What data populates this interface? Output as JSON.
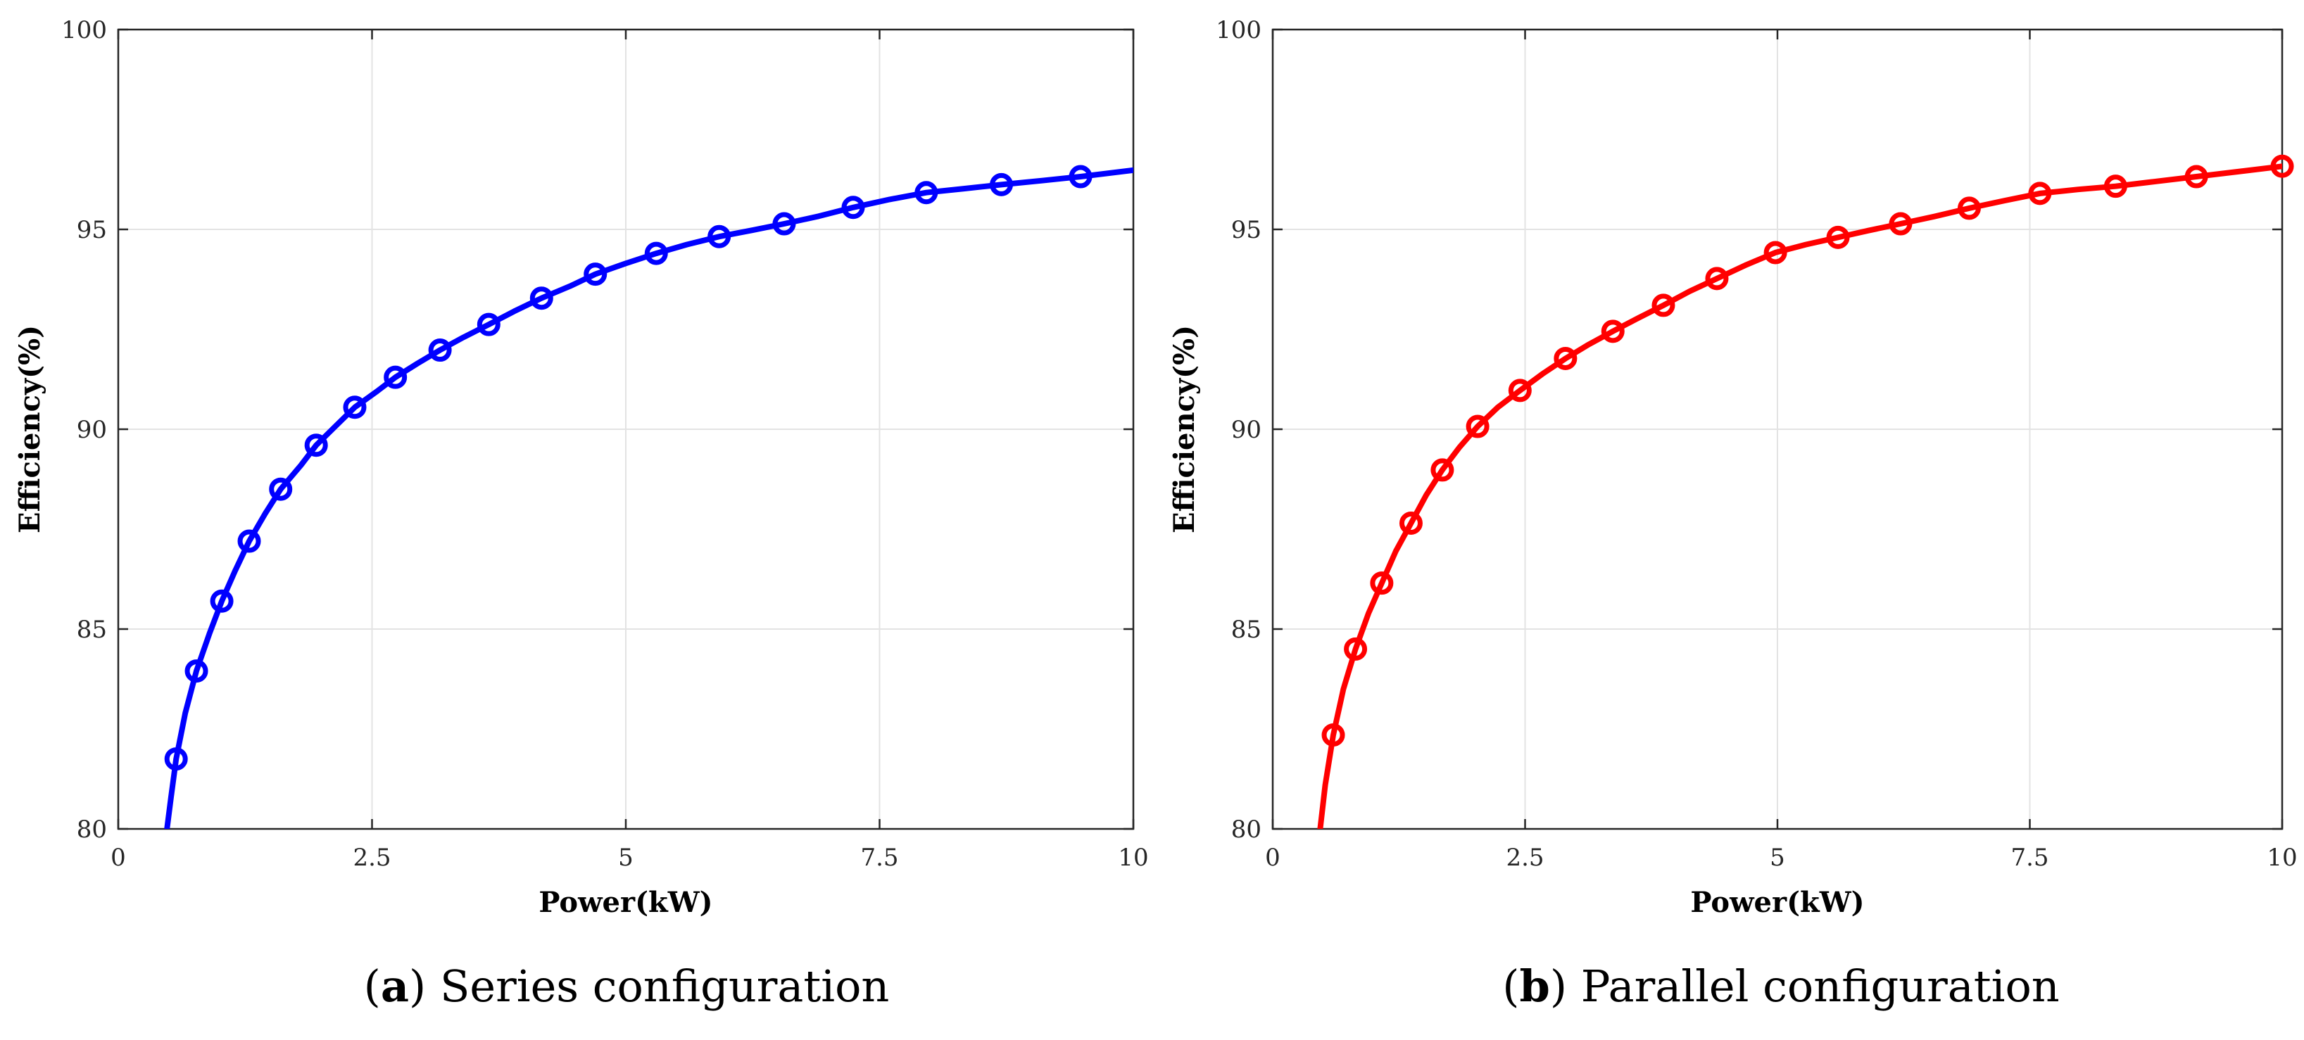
{
  "chart_data": [
    {
      "type": "line",
      "title": "",
      "xlabel": "Power(kW)",
      "ylabel": "Efficiency(%)",
      "xlim": [
        0,
        10
      ],
      "ylim": [
        80,
        100
      ],
      "xticks": [
        "0",
        "2.5",
        "5",
        "7.5",
        "10"
      ],
      "yticks": [
        "80",
        "85",
        "90",
        "95",
        "100"
      ],
      "grid": true,
      "series": [
        {
          "name": "Series configuration",
          "color": "#0000FF",
          "marker": "circle",
          "line_x": [
            0.48,
            0.52,
            0.57,
            0.66,
            0.77,
            0.9,
            1.02,
            1.15,
            1.29,
            1.45,
            1.6,
            1.8,
            1.95,
            2.15,
            2.33,
            2.55,
            2.73,
            2.95,
            3.17,
            3.4,
            3.65,
            3.9,
            4.17,
            4.45,
            4.7,
            5.0,
            5.3,
            5.6,
            5.92,
            6.25,
            6.56,
            6.9,
            7.24,
            7.6,
            7.96,
            8.33,
            8.7,
            9.1,
            9.48,
            10.0
          ],
          "line_y": [
            80.0,
            80.8,
            81.75,
            82.9,
            83.95,
            84.9,
            85.7,
            86.45,
            87.2,
            87.9,
            88.5,
            89.1,
            89.6,
            90.1,
            90.55,
            90.95,
            91.3,
            91.65,
            91.98,
            92.3,
            92.62,
            92.95,
            93.28,
            93.58,
            93.88,
            94.15,
            94.4,
            94.62,
            94.82,
            94.98,
            95.14,
            95.33,
            95.55,
            95.75,
            95.92,
            96.02,
            96.12,
            96.22,
            96.32,
            96.48
          ],
          "marker_x": [
            0.57,
            0.77,
            1.02,
            1.29,
            1.6,
            1.95,
            2.33,
            2.73,
            3.17,
            3.65,
            4.17,
            4.7,
            5.3,
            5.92,
            6.56,
            7.24,
            7.96,
            8.7,
            9.48
          ],
          "marker_y": [
            81.75,
            83.95,
            85.7,
            87.2,
            88.5,
            89.6,
            90.55,
            91.3,
            91.98,
            92.62,
            93.28,
            93.88,
            94.4,
            94.82,
            95.14,
            95.55,
            95.92,
            96.12,
            96.32
          ]
        }
      ]
    },
    {
      "type": "line",
      "title": "",
      "xlabel": "Power(kW)",
      "ylabel": "Efficiency(%)",
      "xlim": [
        0,
        10
      ],
      "ylim": [
        80,
        100
      ],
      "xticks": [
        "0",
        "2.5",
        "5",
        "7.5",
        "10"
      ],
      "yticks": [
        "80",
        "85",
        "90",
        "95",
        "100"
      ],
      "grid": true,
      "series": [
        {
          "name": "Parallel configuration",
          "color": "#FF0000",
          "marker": "circle",
          "line_x": [
            0.47,
            0.52,
            0.6,
            0.7,
            0.82,
            0.95,
            1.08,
            1.22,
            1.37,
            1.52,
            1.68,
            1.85,
            2.03,
            2.23,
            2.45,
            2.67,
            2.9,
            3.13,
            3.37,
            3.62,
            3.87,
            4.13,
            4.4,
            4.68,
            4.98,
            5.28,
            5.6,
            5.9,
            6.22,
            6.55,
            6.9,
            7.25,
            7.6,
            7.98,
            8.35,
            8.75,
            9.15,
            9.58,
            10.0
          ],
          "line_y": [
            80.0,
            81.1,
            82.35,
            83.5,
            84.5,
            85.4,
            86.15,
            86.95,
            87.65,
            88.35,
            88.98,
            89.55,
            90.07,
            90.55,
            90.97,
            91.38,
            91.77,
            92.12,
            92.45,
            92.78,
            93.1,
            93.45,
            93.77,
            94.1,
            94.42,
            94.62,
            94.8,
            94.97,
            95.14,
            95.32,
            95.53,
            95.72,
            95.9,
            96.0,
            96.08,
            96.2,
            96.32,
            96.45,
            96.58
          ],
          "marker_x": [
            0.6,
            0.82,
            1.08,
            1.37,
            1.68,
            2.03,
            2.45,
            2.9,
            3.37,
            3.87,
            4.4,
            4.98,
            5.6,
            6.22,
            6.9,
            7.6,
            8.35,
            9.15,
            10.0
          ],
          "marker_y": [
            82.35,
            84.5,
            86.15,
            87.65,
            88.98,
            90.07,
            90.97,
            91.77,
            92.45,
            93.1,
            93.77,
            94.42,
            94.8,
            95.14,
            95.53,
            95.9,
            96.08,
            96.32,
            96.58
          ]
        }
      ]
    }
  ],
  "captions": [
    {
      "letter": "a",
      "open": "(",
      "close": ")",
      "text": " Series configuration"
    },
    {
      "letter": "b",
      "open": "(",
      "close": ")",
      "text": " Parallel configuration"
    }
  ]
}
